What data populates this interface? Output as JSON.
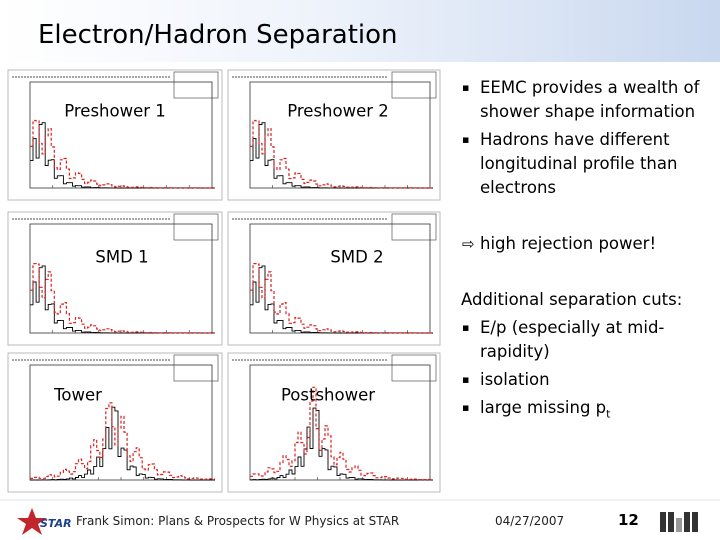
{
  "header": {
    "title": "Electron/Hadron Separation"
  },
  "panels": [
    {
      "label": "Preshower 1"
    },
    {
      "label": "Preshower 2"
    },
    {
      "label": "SMD 1"
    },
    {
      "label": "SMD 2"
    },
    {
      "label": "Tower"
    },
    {
      "label": "Postshower"
    }
  ],
  "bullets_top": [
    {
      "lines": [
        "EEMC provides a wealth of",
        "shower shape information"
      ]
    },
    {
      "lines": [
        "Hadrons have different",
        "longitudinal profile than",
        "electrons"
      ]
    }
  ],
  "conclusion": "high rejection power!",
  "cuts_title": "Additional separation cuts:",
  "cuts": [
    {
      "lines": [
        "E/p (especially at mid-",
        "rapidity)"
      ]
    },
    {
      "lines": [
        "isolation"
      ]
    },
    {
      "lines": [
        "large missing p"
      ],
      "subscript": "t"
    }
  ],
  "footer": {
    "author": "Frank Simon: Plans & Prospects for W Physics at STAR",
    "date": "04/27/2007",
    "page": "12",
    "logo": "STAR"
  }
}
